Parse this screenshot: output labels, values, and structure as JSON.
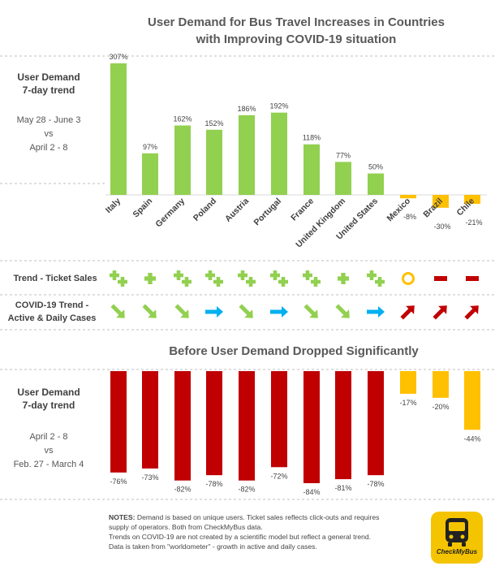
{
  "title": {
    "line1": "User Demand for Bus Travel Increases in Countries",
    "line2": "with Improving COVID-19 situation"
  },
  "section1": {
    "heading_line1": "User Demand",
    "heading_line2": "7-day trend",
    "period_line1": "May 28 - June 3",
    "period_line2": "vs",
    "period_line3": "April 2 - 8"
  },
  "rows": {
    "ticket_sales_label": "Trend - Ticket Sales",
    "covid_label_line1": "COVID-19 Trend -",
    "covid_label_line2": "Active & Daily Cases"
  },
  "section2": {
    "title": "Before User Demand Dropped Significantly",
    "heading_line1": "User Demand",
    "heading_line2": "7-day trend",
    "period_line1": "April 2 - 8",
    "period_line2": "vs",
    "period_line3": "Feb. 27 - March 4"
  },
  "notes": {
    "label": "NOTES:",
    "line1": "Demand is based on unique users. Ticket sales reflects click-outs and requires",
    "line2": "supply of operators. Both from CheckMyBus data.",
    "line3": "Trends on COVID-19 are not created by a scientific model but reflect a general trend.",
    "line4": "Data is taken from \"worldometer\" - growth in active and daily cases."
  },
  "logo": {
    "text": "CheckMyBus",
    "icon": "bus-icon"
  },
  "colors": {
    "green": "#92d050",
    "orange": "#ffc000",
    "red": "#c00000",
    "blue": "#00b0f0",
    "darkred": "#c00000"
  },
  "chart_data": [
    {
      "type": "bar",
      "title": "User Demand for Bus Travel Increases in Countries with Improving COVID-19 situation",
      "categories": [
        "Italy",
        "Spain",
        "Germany",
        "Poland",
        "Austria",
        "Portugal",
        "France",
        "United Kingdom",
        "United States",
        "Mexico",
        "Brazil",
        "Chile"
      ],
      "values": [
        307,
        97,
        162,
        152,
        186,
        192,
        118,
        77,
        50,
        -8,
        -30,
        -21
      ],
      "labels": [
        "307%",
        "97%",
        "162%",
        "152%",
        "186%",
        "192%",
        "118%",
        "77%",
        "50%",
        "-8%",
        "-30%",
        "-21%"
      ],
      "unit": "%",
      "ylim": [
        -30,
        307
      ]
    },
    {
      "type": "table",
      "title": "Trend - Ticket Sales / COVID-19 Trend",
      "categories": [
        "Italy",
        "Spain",
        "Germany",
        "Poland",
        "Austria",
        "Portugal",
        "France",
        "United Kingdom",
        "United States",
        "Mexico",
        "Brazil",
        "Chile"
      ],
      "ticket_sales": [
        "double-plus",
        "plus",
        "double-plus",
        "double-plus",
        "double-plus",
        "double-plus",
        "double-plus",
        "plus",
        "double-plus",
        "circle",
        "minus",
        "minus"
      ],
      "covid_trend": [
        "down",
        "down",
        "down",
        "flat",
        "down",
        "flat",
        "down",
        "down",
        "flat",
        "up",
        "up",
        "up"
      ]
    },
    {
      "type": "bar",
      "title": "Before User Demand Dropped Significantly",
      "categories": [
        "Italy",
        "Spain",
        "Germany",
        "Poland",
        "Austria",
        "Portugal",
        "France",
        "United Kingdom",
        "United States",
        "Mexico",
        "Brazil",
        "Chile"
      ],
      "values": [
        -76,
        -73,
        -82,
        -78,
        -82,
        -72,
        -84,
        -81,
        -78,
        -17,
        -20,
        -44
      ],
      "labels": [
        "-76%",
        "-73%",
        "-82%",
        "-78%",
        "-82%",
        "-72%",
        "-84%",
        "-81%",
        "-78%",
        "-17%",
        "-20%",
        "-44%"
      ],
      "unit": "%",
      "ylim": [
        -84,
        0
      ]
    }
  ]
}
